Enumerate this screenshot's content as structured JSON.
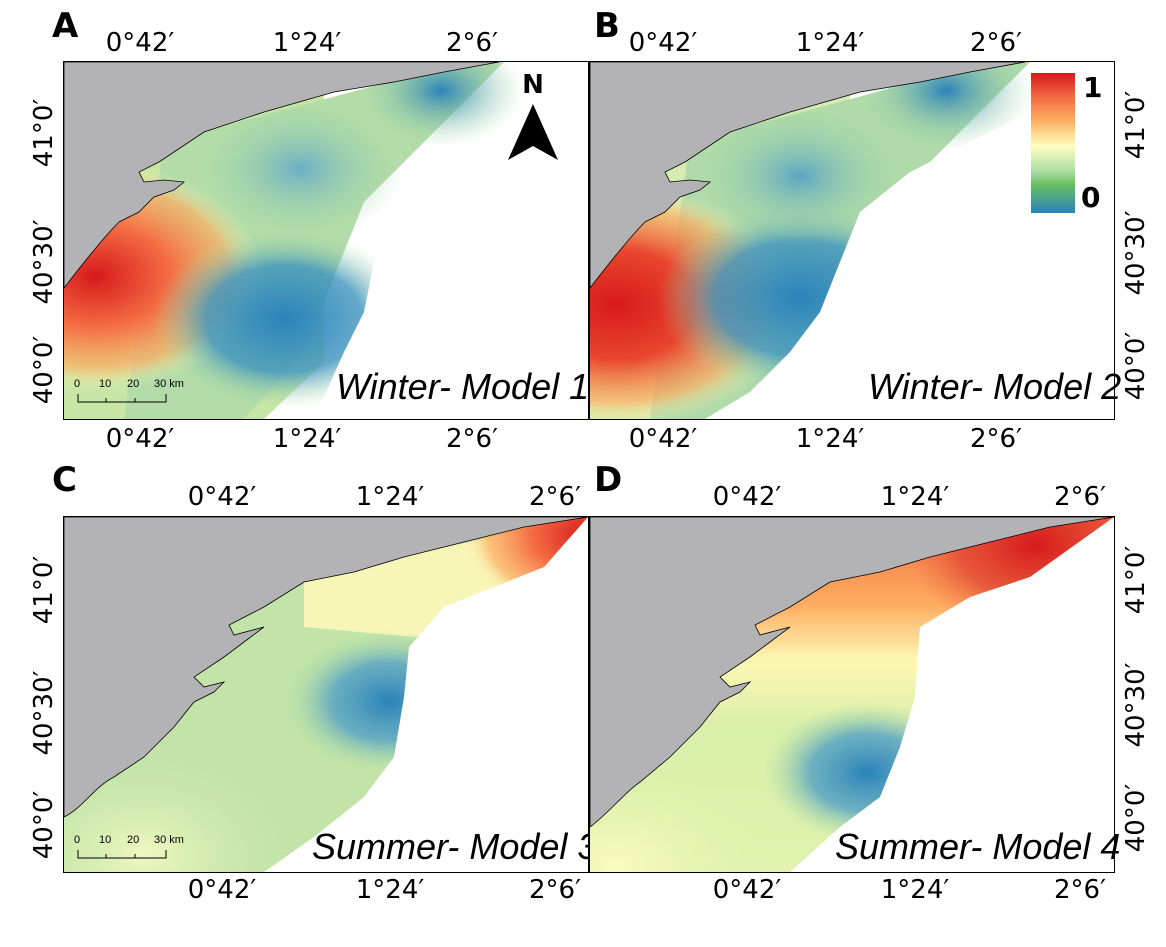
{
  "panels": [
    {
      "letter": "A",
      "model": "Winter- Model 1"
    },
    {
      "letter": "B",
      "model": "Winter- Model 2"
    },
    {
      "letter": "C",
      "model": "Summer- Model 3"
    },
    {
      "letter": "D",
      "model": "Summer- Model 4"
    }
  ],
  "ticks": {
    "lon_0_42": "0°42′",
    "lon_1_24": "1°24′",
    "lon_2_6": "2°6′",
    "lat_41": "41°0′",
    "lat_40_30": "40°30′",
    "lat_40": "40°0′"
  },
  "north_label": "N",
  "legend": {
    "max": "1",
    "min": "0"
  },
  "scalebar": {
    "labels": [
      "0",
      "10",
      "20",
      "30 km"
    ]
  },
  "colors": {
    "land": "#b3b3b6",
    "high": "#d7191c",
    "mid": "#ffffbf",
    "low": "#2b83ba"
  }
}
